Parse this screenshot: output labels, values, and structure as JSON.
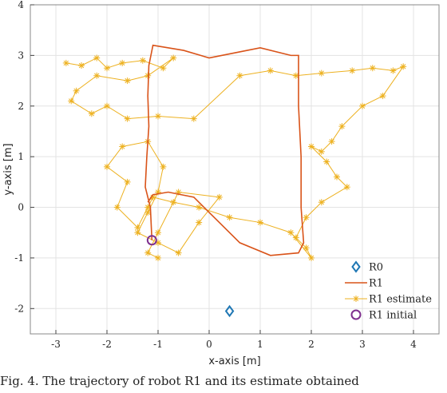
{
  "chart_data": {
    "type": "line",
    "title": "",
    "xlabel": "x-axis [m]",
    "ylabel": "y-axis [m]",
    "xlim": [
      -3.5,
      4.5
    ],
    "ylim": [
      -2.5,
      4
    ],
    "xticks": [
      -3,
      -2,
      -1,
      0,
      1,
      2,
      3,
      4
    ],
    "yticks": [
      -2,
      -1,
      0,
      1,
      2,
      3,
      4
    ],
    "grid": true,
    "legend": "bottom-right",
    "colors": {
      "R0": "#1f77b4",
      "R1": "#d95319",
      "R1 estimate": "#edb120",
      "R1 initial": "#7e2f8e"
    },
    "series": [
      {
        "name": "R0",
        "marker": "diamond",
        "x": [
          0.4
        ],
        "y": [
          -2.05
        ]
      },
      {
        "name": "R1",
        "marker": "line",
        "x": [
          -1.12,
          -1.15,
          -1.25,
          -1.22,
          -1.18,
          -1.2,
          -1.18,
          -1.1,
          -0.5,
          0.0,
          0.5,
          1.0,
          1.6,
          1.75,
          1.75,
          1.8,
          1.8,
          1.85,
          1.75,
          1.2,
          0.6,
          0.2,
          -0.3,
          -0.8,
          -1.1,
          -1.2
        ],
        "y": [
          -0.65,
          0.0,
          0.4,
          1.0,
          1.6,
          2.2,
          2.8,
          3.2,
          3.1,
          2.95,
          3.05,
          3.15,
          3.0,
          3.0,
          2.0,
          1.0,
          0.0,
          -0.7,
          -0.9,
          -0.95,
          -0.7,
          -0.3,
          0.2,
          0.3,
          0.25,
          0.1
        ]
      },
      {
        "name": "R1 estimate",
        "marker": "star-line",
        "x": [
          -2.8,
          -2.5,
          -2.2,
          -2.0,
          -1.7,
          -1.3,
          -0.9,
          -0.7,
          -1.2,
          -1.6,
          -2.2,
          -2.6,
          -2.7,
          -2.3,
          -2.0,
          -1.6,
          -1.0,
          -0.3,
          0.6,
          1.2,
          1.7,
          2.2,
          2.8,
          3.2,
          3.6,
          3.8,
          3.4,
          3.0,
          2.6,
          2.4,
          2.2,
          2.0,
          2.3,
          2.5,
          2.7,
          2.2,
          1.9,
          1.7,
          1.9,
          2.0,
          1.6,
          1.0,
          0.4,
          -0.2,
          -0.7,
          -1.1,
          -1.2,
          -1.4,
          -1.8,
          -1.6,
          -2.0,
          -1.7,
          -1.2,
          -0.9,
          -1.0,
          -1.2,
          -1.4,
          -1.0,
          -0.6,
          -0.2,
          0.2,
          -0.6,
          -1.0,
          -1.2,
          -1.0
        ],
        "y": [
          2.85,
          2.8,
          2.95,
          2.75,
          2.85,
          2.9,
          2.75,
          2.95,
          2.6,
          2.5,
          2.6,
          2.3,
          2.1,
          1.85,
          2.0,
          1.75,
          1.8,
          1.75,
          2.6,
          2.7,
          2.6,
          2.65,
          2.7,
          2.75,
          2.7,
          2.78,
          2.2,
          2.0,
          1.6,
          1.3,
          1.1,
          1.2,
          0.9,
          0.6,
          0.4,
          0.1,
          -0.2,
          -0.6,
          -0.8,
          -1.0,
          -0.5,
          -0.3,
          -0.2,
          0.0,
          0.1,
          0.2,
          0.0,
          -0.4,
          0.0,
          0.5,
          0.8,
          1.2,
          1.3,
          0.8,
          0.3,
          -0.1,
          -0.5,
          -0.7,
          -0.9,
          -0.3,
          0.2,
          0.3,
          -0.5,
          -0.9,
          -1.0
        ]
      },
      {
        "name": "R1 initial",
        "marker": "circle",
        "x": [
          -1.12
        ],
        "y": [
          -0.65
        ]
      }
    ]
  },
  "caption": "Fig. 4.  The trajectory of robot R1 and its estimate obtained"
}
